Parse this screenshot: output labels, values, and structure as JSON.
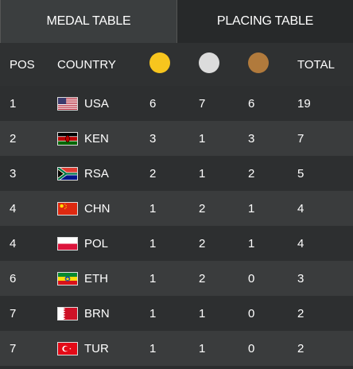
{
  "tabs": [
    {
      "label": "MEDAL TABLE",
      "active": true
    },
    {
      "label": "PLACING TABLE",
      "active": false
    }
  ],
  "header": {
    "pos": "POS",
    "country": "COUNTRY",
    "gold_icon": "gold-medal",
    "silver_icon": "silver-medal",
    "bronze_icon": "bronze-medal",
    "total": "TOTAL"
  },
  "colors": {
    "gold": "#f7c51e",
    "silver": "#dcdcdc",
    "bronze": "#b17a3c"
  },
  "rows": [
    {
      "pos": "1",
      "code": "USA",
      "flag": "usa-flag-icon",
      "gold": "6",
      "silver": "7",
      "bronze": "6",
      "total": "19"
    },
    {
      "pos": "2",
      "code": "KEN",
      "flag": "kenya-flag-icon",
      "gold": "3",
      "silver": "1",
      "bronze": "3",
      "total": "7"
    },
    {
      "pos": "3",
      "code": "RSA",
      "flag": "south-africa-flag-icon",
      "gold": "2",
      "silver": "1",
      "bronze": "2",
      "total": "5"
    },
    {
      "pos": "4",
      "code": "CHN",
      "flag": "china-flag-icon",
      "gold": "1",
      "silver": "2",
      "bronze": "1",
      "total": "4"
    },
    {
      "pos": "4",
      "code": "POL",
      "flag": "poland-flag-icon",
      "gold": "1",
      "silver": "2",
      "bronze": "1",
      "total": "4"
    },
    {
      "pos": "6",
      "code": "ETH",
      "flag": "ethiopia-flag-icon",
      "gold": "1",
      "silver": "2",
      "bronze": "0",
      "total": "3"
    },
    {
      "pos": "7",
      "code": "BRN",
      "flag": "bahrain-flag-icon",
      "gold": "1",
      "silver": "1",
      "bronze": "0",
      "total": "2"
    },
    {
      "pos": "7",
      "code": "TUR",
      "flag": "turkey-flag-icon",
      "gold": "1",
      "silver": "1",
      "bronze": "0",
      "total": "2"
    }
  ]
}
